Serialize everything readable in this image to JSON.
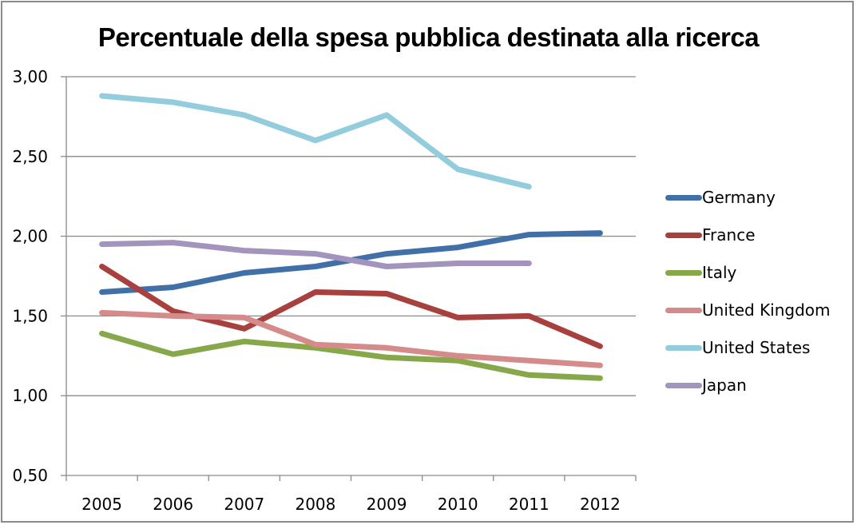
{
  "chart_data": {
    "type": "line",
    "title": "Percentuale della spesa pubblica destinata alla ricerca",
    "xlabel": "",
    "ylabel": "",
    "categories": [
      "2005",
      "2006",
      "2007",
      "2008",
      "2009",
      "2010",
      "2011",
      "2012"
    ],
    "ylim": [
      0.5,
      3.0
    ],
    "yticks": [
      0.5,
      1.0,
      1.5,
      2.0,
      2.5,
      3.0
    ],
    "ytick_labels": [
      "0,50",
      "1,00",
      "1,50",
      "2,00",
      "2,50",
      "3,00"
    ],
    "grid": "horizontal",
    "legend_position": "right",
    "series": [
      {
        "name": "Germany",
        "color": "#4170a8",
        "values": [
          1.65,
          1.68,
          1.77,
          1.81,
          1.89,
          1.93,
          2.01,
          2.02
        ]
      },
      {
        "name": "France",
        "color": "#a8403e",
        "values": [
          1.81,
          1.53,
          1.42,
          1.65,
          1.64,
          1.49,
          1.5,
          1.31
        ]
      },
      {
        "name": "Italy",
        "color": "#86a84a",
        "values": [
          1.39,
          1.26,
          1.34,
          1.3,
          1.24,
          1.22,
          1.13,
          1.11
        ]
      },
      {
        "name": "United Kingdom",
        "color": "#d48b8a",
        "values": [
          1.52,
          1.5,
          1.49,
          1.32,
          1.3,
          1.25,
          1.22,
          1.19
        ]
      },
      {
        "name": "United States",
        "color": "#93cddd",
        "values": [
          2.88,
          2.84,
          2.76,
          2.6,
          2.76,
          2.42,
          2.31,
          null
        ]
      },
      {
        "name": "Japan",
        "color": "#a394bd",
        "values": [
          1.95,
          1.96,
          1.91,
          1.89,
          1.81,
          1.83,
          1.83,
          null
        ]
      }
    ]
  }
}
